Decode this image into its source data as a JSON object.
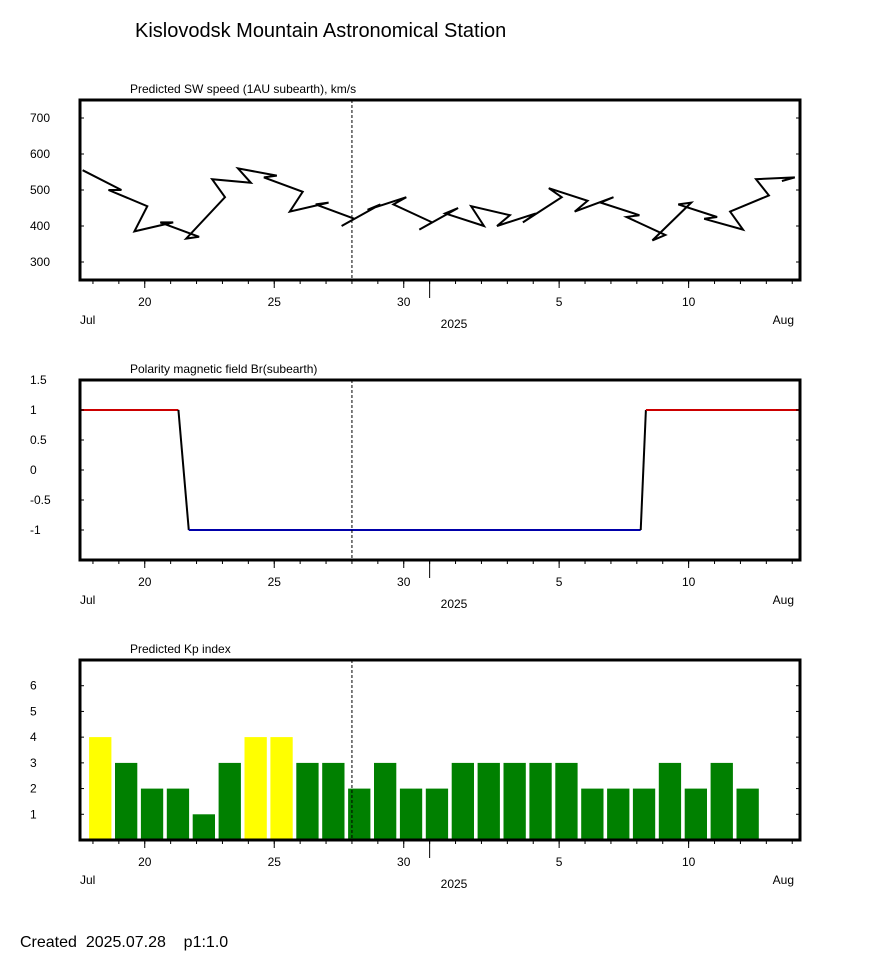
{
  "page": {
    "title": "Kislovodsk Mountain Astronomical Station",
    "footer": "Created  2025.07.28    p1:1.0"
  },
  "colors": {
    "frame": "#000000",
    "positive": "#cc0000",
    "negative": "#0000aa",
    "kp_low": "#008000",
    "kp_high": "#ffff00",
    "marker": "#000000"
  },
  "chart_data": [
    {
      "type": "line",
      "title": "Predicted SW speed (1AU subearth), km/s",
      "xlabel": "2025",
      "x_range": [
        "2025-07-18",
        "2025-08-14"
      ],
      "ylim": [
        250,
        750
      ],
      "y_ticks": [
        300,
        400,
        500,
        600,
        700
      ],
      "x_ticks": [
        {
          "label": "20",
          "date": "2025-07-20"
        },
        {
          "label": "25",
          "date": "2025-07-25"
        },
        {
          "label": "30",
          "date": "2025-07-30"
        },
        {
          "label": "5",
          "date": "2025-08-05"
        },
        {
          "label": "10",
          "date": "2025-08-10"
        }
      ],
      "month_labels": [
        {
          "label": "Jul",
          "date": "2025-07-18"
        },
        {
          "label": "Aug",
          "date": "2025-08-14"
        }
      ],
      "current_date": "2025-07-28",
      "series": [
        {
          "x": [
            "2025-07-18",
            "2025-07-19",
            "2025-07-19",
            "2025-07-20",
            "2025-07-20",
            "2025-07-21",
            "2025-07-21",
            "2025-07-22",
            "2025-07-22",
            "2025-07-23",
            "2025-07-23",
            "2025-07-24",
            "2025-07-24",
            "2025-07-25",
            "2025-07-25",
            "2025-07-26",
            "2025-07-26",
            "2025-07-27",
            "2025-07-27",
            "2025-07-28",
            "2025-07-28",
            "2025-07-29",
            "2025-07-29",
            "2025-07-30",
            "2025-07-30",
            "2025-07-31",
            "2025-07-31",
            "2025-08-01",
            "2025-08-01",
            "2025-08-02",
            "2025-08-02",
            "2025-08-03",
            "2025-08-03",
            "2025-08-04",
            "2025-08-04",
            "2025-08-05",
            "2025-08-05",
            "2025-08-06",
            "2025-08-06",
            "2025-08-07",
            "2025-08-07",
            "2025-08-08",
            "2025-08-08",
            "2025-08-09",
            "2025-08-09",
            "2025-08-10",
            "2025-08-10",
            "2025-08-11",
            "2025-08-11",
            "2025-08-12",
            "2025-08-12",
            "2025-08-13",
            "2025-08-13",
            "2025-08-14",
            "2025-08-14"
          ],
          "y": [
            555,
            500,
            500,
            455,
            385,
            410,
            410,
            370,
            365,
            480,
            530,
            520,
            560,
            540,
            535,
            495,
            440,
            465,
            460,
            420,
            400,
            460,
            445,
            480,
            460,
            410,
            390,
            450,
            435,
            400,
            455,
            430,
            400,
            435,
            410,
            480,
            505,
            470,
            440,
            480,
            465,
            430,
            425,
            375,
            360,
            465,
            460,
            425,
            420,
            390,
            440,
            485,
            530,
            535,
            525
          ]
        }
      ]
    },
    {
      "type": "line",
      "title": "Polarity magnetic field  Br(subearth)",
      "xlabel": "2025",
      "x_range": [
        "2025-07-18",
        "2025-08-14"
      ],
      "ylim": [
        -1.5,
        1.5
      ],
      "y_ticks": [
        1.5,
        1,
        0.5,
        0,
        -0.5,
        -1
      ],
      "y_tick_labels": [
        "1.5",
        "1",
        "0.5",
        "0",
        "-0.5",
        "-1"
      ],
      "x_ticks": [
        {
          "label": "20",
          "date": "2025-07-20"
        },
        {
          "label": "25",
          "date": "2025-07-25"
        },
        {
          "label": "30",
          "date": "2025-07-30"
        },
        {
          "label": "5",
          "date": "2025-08-05"
        },
        {
          "label": "10",
          "date": "2025-08-10"
        }
      ],
      "month_labels": [
        {
          "label": "Jul",
          "date": "2025-07-18"
        },
        {
          "label": "Aug",
          "date": "2025-08-14"
        }
      ],
      "current_date": "2025-07-28",
      "series": [
        {
          "x": [
            "2025-07-18",
            "2025-07-21",
            "2025-07-22",
            "2025-08-08",
            "2025-08-08",
            "2025-08-14"
          ],
          "y": [
            1,
            1,
            -1,
            -1,
            1,
            1
          ]
        }
      ]
    },
    {
      "type": "bar",
      "title": "Predicted Kp index",
      "xlabel": "2025",
      "x_range": [
        "2025-07-18",
        "2025-08-14"
      ],
      "ylim": [
        0,
        7
      ],
      "y_ticks": [
        1,
        2,
        3,
        4,
        5,
        6
      ],
      "x_ticks": [
        {
          "label": "20",
          "date": "2025-07-20"
        },
        {
          "label": "25",
          "date": "2025-07-25"
        },
        {
          "label": "30",
          "date": "2025-07-30"
        },
        {
          "label": "5",
          "date": "2025-08-05"
        },
        {
          "label": "10",
          "date": "2025-08-10"
        }
      ],
      "month_labels": [
        {
          "label": "Jul",
          "date": "2025-07-18"
        },
        {
          "label": "Aug",
          "date": "2025-08-14"
        }
      ],
      "current_date": "2025-07-28",
      "high_threshold": 4,
      "categories": [
        "2025-07-18",
        "2025-07-19",
        "2025-07-20",
        "2025-07-21",
        "2025-07-22",
        "2025-07-23",
        "2025-07-24",
        "2025-07-25",
        "2025-07-26",
        "2025-07-27",
        "2025-07-28",
        "2025-07-29",
        "2025-07-30",
        "2025-07-31",
        "2025-08-01",
        "2025-08-02",
        "2025-08-03",
        "2025-08-04",
        "2025-08-05",
        "2025-08-06",
        "2025-08-07",
        "2025-08-08",
        "2025-08-09",
        "2025-08-10",
        "2025-08-11",
        "2025-08-12"
      ],
      "values": [
        4,
        3,
        2,
        2,
        1,
        3,
        4,
        4,
        3,
        3,
        2,
        3,
        2,
        2,
        3,
        3,
        3,
        3,
        3,
        2,
        2,
        2,
        3,
        2,
        3,
        2
      ]
    }
  ]
}
